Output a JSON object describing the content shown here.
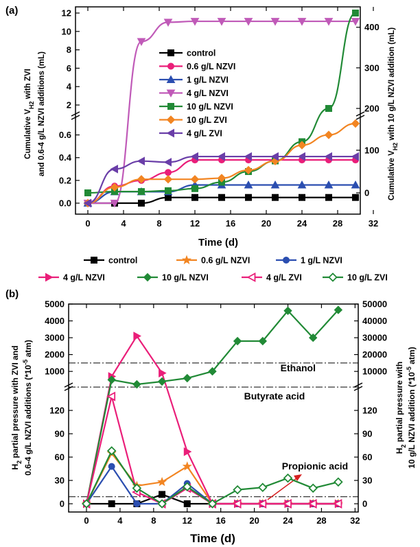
{
  "chart_data": [
    {
      "panel": "(a)",
      "type": "line",
      "xlabel": "Time (d)",
      "ylabel_left": [
        "Cumulative V",
        "H2",
        " with ZVI",
        "and 0.6-4 g/L NZVI additions (mL)"
      ],
      "ylabel_right": [
        "Cumulative V",
        "H2",
        " with 10 g/L NZVI addition (mL)"
      ],
      "x_ticks": [
        "0",
        "3",
        "6",
        "9",
        "12",
        "15",
        "18",
        "21",
        "24",
        "27",
        "30"
      ],
      "x_tick_labels": [
        "0",
        "4",
        "8",
        "12",
        "16",
        "20",
        "24",
        "28",
        "32"
      ],
      "y_left_lower_ticks": [
        "0.0",
        "0.2",
        "0.4",
        "0.6"
      ],
      "y_left_upper_ticks": [
        "2",
        "4",
        "6",
        "8",
        "10",
        "12"
      ],
      "y_right_ticks": [
        "0",
        "100",
        "200",
        "300",
        "400"
      ],
      "axis_break": true,
      "series": [
        {
          "name": "control",
          "axis": "left",
          "color": "#000000",
          "marker": "square",
          "x": [
            0,
            3,
            6,
            9,
            12,
            15,
            18,
            21,
            24,
            27,
            30
          ],
          "y": [
            0,
            0.0,
            0.0,
            0.05,
            0.05,
            0.05,
            0.05,
            0.05,
            0.05,
            0.05,
            0.05
          ]
        },
        {
          "name": "0.6 g/L NZVI",
          "axis": "left",
          "color": "#ea1e79",
          "marker": "circle",
          "x": [
            0,
            3,
            6,
            9,
            12,
            15,
            18,
            21,
            24,
            27,
            30
          ],
          "y": [
            0,
            0.15,
            0.2,
            0.27,
            0.38,
            0.38,
            0.38,
            0.38,
            0.38,
            0.38,
            0.38
          ]
        },
        {
          "name": "1 g/L NZVI",
          "axis": "left",
          "color": "#2b4eb0",
          "marker": "triangle-up",
          "x": [
            0,
            3,
            6,
            9,
            12,
            15,
            18,
            21,
            24,
            27,
            30
          ],
          "y": [
            0,
            0.1,
            0.1,
            0.1,
            0.16,
            0.16,
            0.16,
            0.16,
            0.16,
            0.16,
            0.16
          ]
        },
        {
          "name": "4 g/L NZVI",
          "axis": "left",
          "color": "#c05ab8",
          "marker": "triangle-down",
          "x": [
            0,
            3,
            6,
            9,
            12,
            15,
            18,
            21,
            24,
            27,
            30
          ],
          "y": [
            0,
            1.9,
            8.9,
            11.0,
            11.1,
            11.1,
            11.1,
            11.1,
            11.1,
            11.1,
            11.1
          ]
        },
        {
          "name": "10 g/L NZVI",
          "axis": "right",
          "color": "#218a36",
          "marker": "square",
          "x": [
            0,
            3,
            6,
            9,
            12,
            15,
            18,
            21,
            24,
            27,
            30
          ],
          "y": [
            0,
            3,
            3,
            5,
            10,
            25,
            50,
            75,
            120,
            200,
            435
          ]
        },
        {
          "name": "10 g/L ZVI",
          "axis": "left",
          "color": "#f28522",
          "marker": "diamond",
          "x": [
            0,
            3,
            6,
            9,
            12,
            15,
            18,
            21,
            24,
            27,
            30
          ],
          "y": [
            0,
            0.14,
            0.21,
            0.21,
            0.21,
            0.22,
            0.29,
            0.37,
            0.51,
            0.6,
            0.7
          ]
        },
        {
          "name": "4 g/L ZVI",
          "axis": "left",
          "color": "#6a3ea8",
          "marker": "triangle-left",
          "x": [
            0,
            3,
            6,
            9,
            12,
            15,
            18,
            21,
            24,
            27,
            30
          ],
          "y": [
            0,
            0.3,
            0.37,
            0.36,
            0.41,
            0.41,
            0.41,
            0.41,
            0.41,
            0.41,
            0.41
          ]
        }
      ]
    },
    {
      "panel": "(b)",
      "type": "line",
      "xlabel": "Time (d)",
      "ylabel_left": [
        "H",
        "2",
        " partial pressure with ZVI and",
        "0.6-4 g/L NZVI additions (*10",
        "-5",
        " atm)"
      ],
      "ylabel_right": [
        "H",
        "2",
        " partial pressure  with",
        "10 g/L NZVI addition (*10",
        "-5",
        " atm)"
      ],
      "x_tick_labels": [
        "0",
        "4",
        "8",
        "12",
        "16",
        "20",
        "24",
        "28",
        "32"
      ],
      "y_left_lower_ticks": [
        "0",
        "30",
        "60",
        "90",
        "120"
      ],
      "y_left_upper_ticks": [
        "1000",
        "2000",
        "3000",
        "4000",
        "5000"
      ],
      "y_right_lower_ticks": [
        "0",
        "30",
        "60",
        "90",
        "120"
      ],
      "y_right_upper_ticks": [
        "10000",
        "20000",
        "30000",
        "40000",
        "50000"
      ],
      "reference_lines": [
        {
          "label": "Ethanol",
          "value": 1500,
          "axis": "left-upper"
        },
        {
          "label": "Butyrate acid",
          "value": 150,
          "axis": "left-upper"
        },
        {
          "label": "Propionic acid",
          "value": 9,
          "axis": "left-lower"
        }
      ],
      "series": [
        {
          "name": "control",
          "axis": "left",
          "color": "#000000",
          "marker": "square",
          "x": [
            0,
            3,
            6,
            9,
            12,
            15,
            18,
            21,
            24,
            27,
            30
          ],
          "y": [
            0,
            0,
            0,
            12,
            0,
            0,
            0,
            0,
            0,
            0,
            0
          ]
        },
        {
          "name": "0.6 g/L NZVI",
          "axis": "left",
          "color": "#f28522",
          "marker": "star",
          "x": [
            0,
            3,
            6,
            9,
            12,
            15,
            18,
            21,
            24,
            27,
            30
          ],
          "y": [
            0,
            65,
            23,
            28,
            48,
            0,
            0,
            0,
            0,
            0,
            0
          ]
        },
        {
          "name": "1 g/L NZVI",
          "axis": "left",
          "color": "#2b4eb0",
          "marker": "circle",
          "x": [
            0,
            3,
            6,
            9,
            12,
            15,
            18,
            21,
            24,
            27,
            30
          ],
          "y": [
            0,
            48,
            0,
            0,
            26,
            0,
            0,
            0,
            0,
            0,
            0
          ]
        },
        {
          "name": "4 g/L NZVI",
          "axis": "left",
          "color": "#ea1e79",
          "marker": "triangle-right",
          "x": [
            0,
            3,
            6,
            9,
            12,
            15,
            18,
            21,
            24,
            27,
            30
          ],
          "y": [
            0,
            700,
            3100,
            900,
            67,
            0,
            0,
            0,
            0,
            0,
            0
          ]
        },
        {
          "name": "10 g/L NZVI",
          "axis": "right",
          "color": "#218a36",
          "marker": "diamond",
          "x": [
            0,
            3,
            6,
            9,
            12,
            15,
            18,
            21,
            24,
            27,
            30
          ],
          "y": [
            0,
            5000,
            2300,
            4000,
            6000,
            10000,
            28000,
            28000,
            46000,
            30000,
            46500
          ]
        },
        {
          "name": "4 g/L ZVI",
          "axis": "left",
          "color": "#ea1e79",
          "marker": "triangle-left-open",
          "x": [
            0,
            3,
            6,
            9,
            12,
            15,
            18,
            21,
            24,
            27,
            30
          ],
          "y": [
            0,
            138,
            15,
            0,
            20,
            0,
            0,
            0,
            0,
            0,
            0
          ]
        },
        {
          "name": "10 g/L ZVI",
          "axis": "left",
          "color": "#218a36",
          "marker": "diamond-open",
          "x": [
            0,
            3,
            6,
            9,
            12,
            15,
            18,
            21,
            24,
            27,
            30
          ],
          "y": [
            0,
            68,
            20,
            0,
            22,
            0,
            18,
            21,
            33,
            20,
            28
          ]
        }
      ]
    }
  ]
}
